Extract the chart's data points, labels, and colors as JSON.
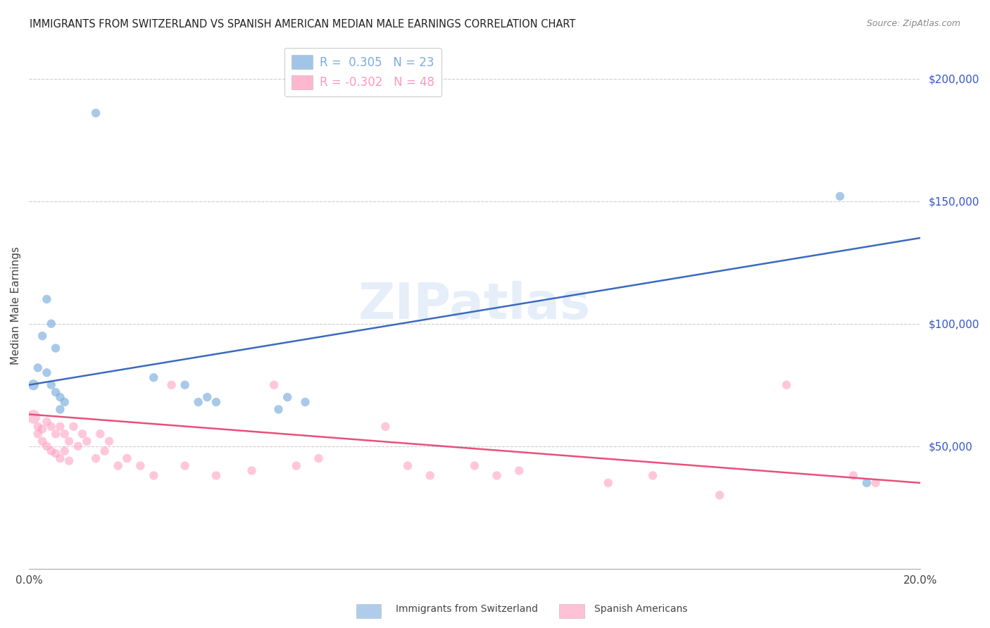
{
  "title": "IMMIGRANTS FROM SWITZERLAND VS SPANISH AMERICAN MEDIAN MALE EARNINGS CORRELATION CHART",
  "source": "Source: ZipAtlas.com",
  "ylabel": "Median Male Earnings",
  "background_color": "#ffffff",
  "watermark": "ZIPatlas",
  "swiss_R": 0.305,
  "swiss_N": 23,
  "spanish_R": -0.302,
  "spanish_N": 48,
  "swiss_color": "#7aaddd",
  "spanish_color": "#ff99bb",
  "trend_swiss_color": "#3a6abf",
  "trend_spanish_color": "#e8507a",
  "swiss_x": [
    0.001,
    0.002,
    0.003,
    0.004,
    0.004,
    0.005,
    0.005,
    0.006,
    0.006,
    0.007,
    0.007,
    0.008,
    0.015,
    0.028,
    0.035,
    0.038,
    0.04,
    0.042,
    0.056,
    0.058,
    0.062,
    0.182,
    0.188
  ],
  "swiss_y": [
    75000,
    82000,
    95000,
    110000,
    80000,
    100000,
    75000,
    90000,
    72000,
    70000,
    65000,
    68000,
    186000,
    78000,
    75000,
    68000,
    70000,
    68000,
    65000,
    70000,
    68000,
    152000,
    35000
  ],
  "spanish_x": [
    0.001,
    0.002,
    0.002,
    0.003,
    0.003,
    0.004,
    0.004,
    0.005,
    0.005,
    0.006,
    0.006,
    0.007,
    0.007,
    0.008,
    0.008,
    0.009,
    0.009,
    0.01,
    0.011,
    0.012,
    0.013,
    0.015,
    0.016,
    0.017,
    0.018,
    0.02,
    0.022,
    0.025,
    0.028,
    0.032,
    0.035,
    0.042,
    0.05,
    0.055,
    0.06,
    0.065,
    0.08,
    0.085,
    0.09,
    0.1,
    0.105,
    0.11,
    0.13,
    0.14,
    0.155,
    0.17,
    0.185,
    0.19
  ],
  "spanish_y": [
    62000,
    58000,
    55000,
    57000,
    52000,
    60000,
    50000,
    58000,
    48000,
    55000,
    47000,
    58000,
    45000,
    55000,
    48000,
    52000,
    44000,
    58000,
    50000,
    55000,
    52000,
    45000,
    55000,
    48000,
    52000,
    42000,
    45000,
    42000,
    38000,
    75000,
    42000,
    38000,
    40000,
    75000,
    42000,
    45000,
    58000,
    42000,
    38000,
    42000,
    38000,
    40000,
    35000,
    38000,
    30000,
    75000,
    38000,
    35000
  ],
  "swiss_sizes": [
    120,
    80,
    80,
    80,
    80,
    80,
    80,
    80,
    80,
    80,
    80,
    80,
    80,
    80,
    80,
    80,
    80,
    80,
    80,
    80,
    80,
    80,
    80
  ],
  "spanish_sizes": [
    200,
    80,
    80,
    80,
    80,
    80,
    80,
    80,
    80,
    80,
    80,
    80,
    80,
    80,
    80,
    80,
    80,
    80,
    80,
    80,
    80,
    80,
    80,
    80,
    80,
    80,
    80,
    80,
    80,
    80,
    80,
    80,
    80,
    80,
    80,
    80,
    80,
    80,
    80,
    80,
    80,
    80,
    80,
    80,
    80,
    80,
    80,
    80
  ],
  "xlim": [
    0,
    0.2
  ],
  "ylim": [
    0,
    215000
  ],
  "yticks": [
    50000,
    100000,
    150000,
    200000
  ],
  "xticks": [
    0.0,
    0.05,
    0.1,
    0.15,
    0.2
  ]
}
